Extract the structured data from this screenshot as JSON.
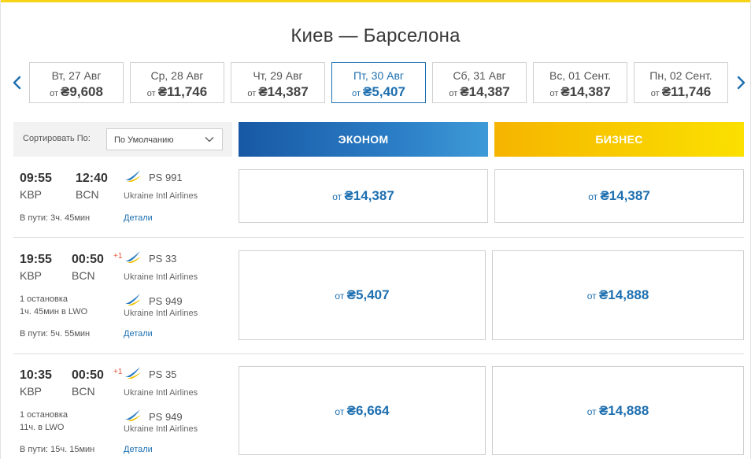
{
  "route": {
    "title": "Киев — Барселона"
  },
  "dates": [
    {
      "label": "Вт, 27 Авг",
      "prefix": "от",
      "price": "₴9,608"
    },
    {
      "label": "Ср, 28 Авг",
      "prefix": "от",
      "price": "₴11,746"
    },
    {
      "label": "Чт, 29 Авг",
      "prefix": "от",
      "price": "₴14,387"
    },
    {
      "label": "Пт, 30 Авг",
      "prefix": "от",
      "price": "₴5,407",
      "active": true
    },
    {
      "label": "Сб, 31 Авг",
      "prefix": "от",
      "price": "₴14,387"
    },
    {
      "label": "Вс, 01 Сент.",
      "prefix": "от",
      "price": "₴14,387"
    },
    {
      "label": "Пн, 02 Сент.",
      "prefix": "от",
      "price": "₴11,746"
    }
  ],
  "sort": {
    "label": "Сортировать По:",
    "value": "По Умолчанию"
  },
  "classes": {
    "economy": "ЭКОНОМ",
    "business": "БИЗНЕС"
  },
  "colors": {
    "accent": "#1d6fb0",
    "economy": "#1858a4",
    "business": "#f8cd00",
    "top_bar": "#f7d417",
    "next_day": "#e2533b"
  },
  "flights": [
    {
      "dep_time": "09:55",
      "arr_time": "12:40",
      "dep_code": "KBP",
      "arr_code": "BCN",
      "flight_no": "PS 991",
      "airline": "Ukraine Intl Airlines",
      "duration": "В пути: 3ч. 45мин",
      "details": "Детали",
      "economy_prefix": "от",
      "economy_price": "₴14,387",
      "business_prefix": "от",
      "business_price": "₴14,387"
    },
    {
      "dep_time": "19:55",
      "arr_time": "00:50",
      "next_day": "+1",
      "dep_code": "KBP",
      "arr_code": "BCN",
      "flight_no": "PS 33",
      "airline": "Ukraine Intl Airlines",
      "stops": "1 остановка",
      "layover": "1ч. 45мин в LWO",
      "flight_no_2": "PS 949",
      "airline_2": "Ukraine Intl Airlines",
      "duration": "В пути: 5ч. 55мин",
      "details": "Детали",
      "economy_prefix": "от",
      "economy_price": "₴5,407",
      "business_prefix": "от",
      "business_price": "₴14,888"
    },
    {
      "dep_time": "10:35",
      "arr_time": "00:50",
      "next_day": "+1",
      "dep_code": "KBP",
      "arr_code": "BCN",
      "flight_no": "PS 35",
      "airline": "Ukraine Intl Airlines",
      "stops": "1 остановка",
      "layover": "11ч. в LWO",
      "flight_no_2": "PS 949",
      "airline_2": "Ukraine Intl Airlines",
      "duration": "В пути: 15ч. 15мин",
      "details": "Детали",
      "economy_prefix": "от",
      "economy_price": "₴6,664",
      "business_prefix": "от",
      "business_price": "₴14,888"
    }
  ],
  "icons": {
    "prev": "chevron-left-icon",
    "next": "chevron-right-icon",
    "dropdown": "chevron-down-icon",
    "airline": "uia-logo-icon"
  }
}
